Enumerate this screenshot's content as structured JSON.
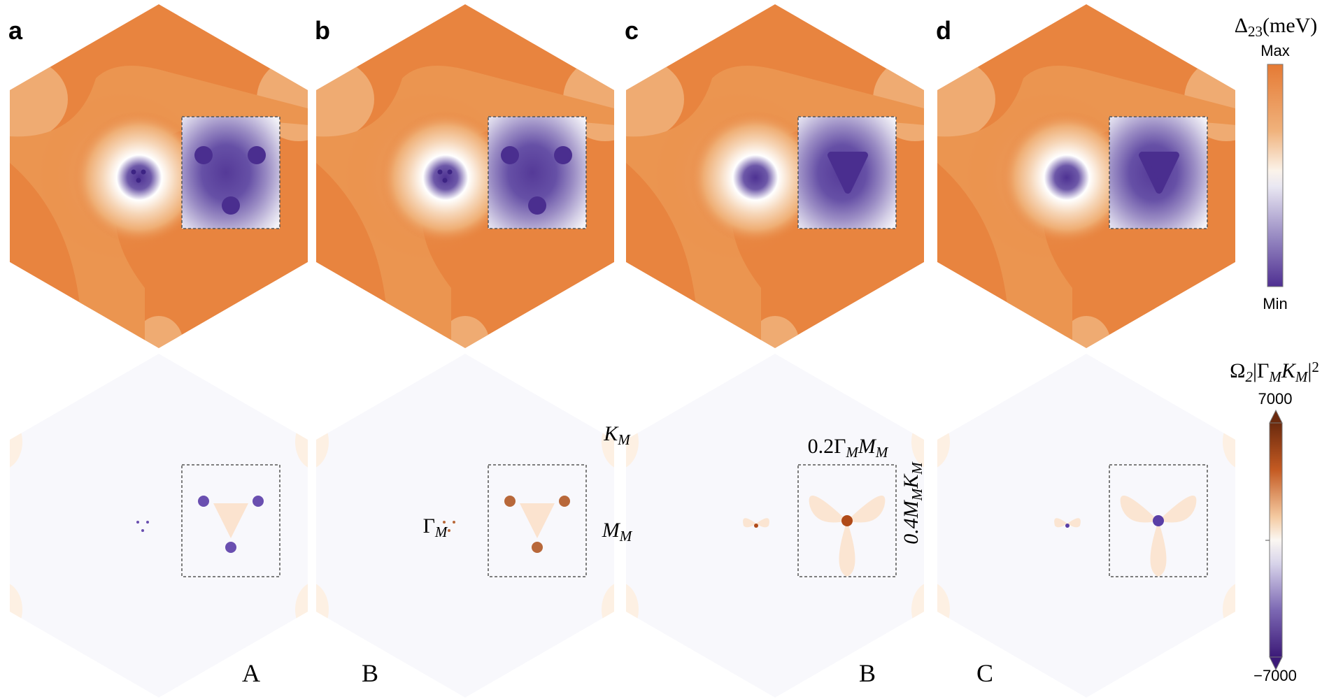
{
  "panels": [
    {
      "label": "a"
    },
    {
      "label": "b"
    },
    {
      "label": "c"
    },
    {
      "label": "d"
    }
  ],
  "top_colorbar": {
    "title": [
      {
        "text": "Δ"
      },
      {
        "sub": "23"
      },
      {
        "text": "(meV)"
      }
    ],
    "max_label": "Max",
    "min_label": "Min"
  },
  "bottom_colorbar": {
    "title": [
      {
        "text": "Ω"
      },
      {
        "sub": "2"
      },
      {
        "text": "|Γ"
      },
      {
        "sub": "M"
      },
      {
        "text": "K"
      },
      {
        "sub": "M"
      },
      {
        "text": "|"
      },
      {
        "sup": "2"
      }
    ],
    "max_label": "7000",
    "min_label": "−7000"
  },
  "annotations": [
    {
      "parts": [
        {
          "text": "K"
        },
        {
          "sub": "M"
        }
      ]
    },
    {
      "parts": [
        {
          "text": "Γ"
        },
        {
          "sub": "M"
        }
      ]
    },
    {
      "parts": [
        {
          "text": "M"
        },
        {
          "sub": "M"
        }
      ]
    },
    {
      "parts": [
        {
          "text": "0.2Γ"
        },
        {
          "sub": "M"
        },
        {
          "text": "M"
        },
        {
          "sub": "M"
        }
      ]
    },
    {
      "parts": [
        {
          "text": "0.4M"
        },
        {
          "sub": "M"
        },
        {
          "text": "K"
        },
        {
          "sub": "M"
        }
      ]
    }
  ],
  "row_labels": [
    "A",
    "B",
    "B",
    "C"
  ]
}
